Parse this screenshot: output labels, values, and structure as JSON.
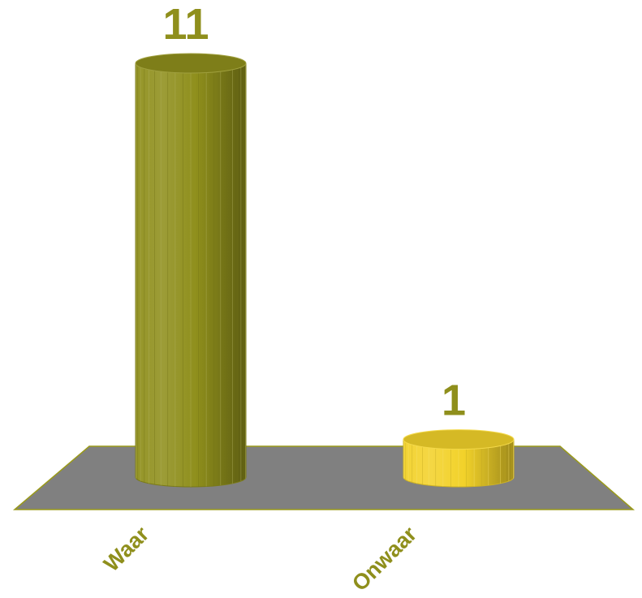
{
  "chart_data": {
    "type": "bar",
    "style": "3d-cylinder",
    "categories": [
      "Waar",
      "Onwaar"
    ],
    "values": [
      11,
      1
    ],
    "data_labels": [
      "11",
      "1"
    ],
    "colors": [
      "#8f8f1c",
      "#f2d22a"
    ],
    "label_color": "#8f8f1c",
    "floor_color": "#808080",
    "floor_edge_color": "#9a9a1a",
    "grid": false,
    "legend": "none",
    "ylim": [
      0,
      11
    ]
  }
}
